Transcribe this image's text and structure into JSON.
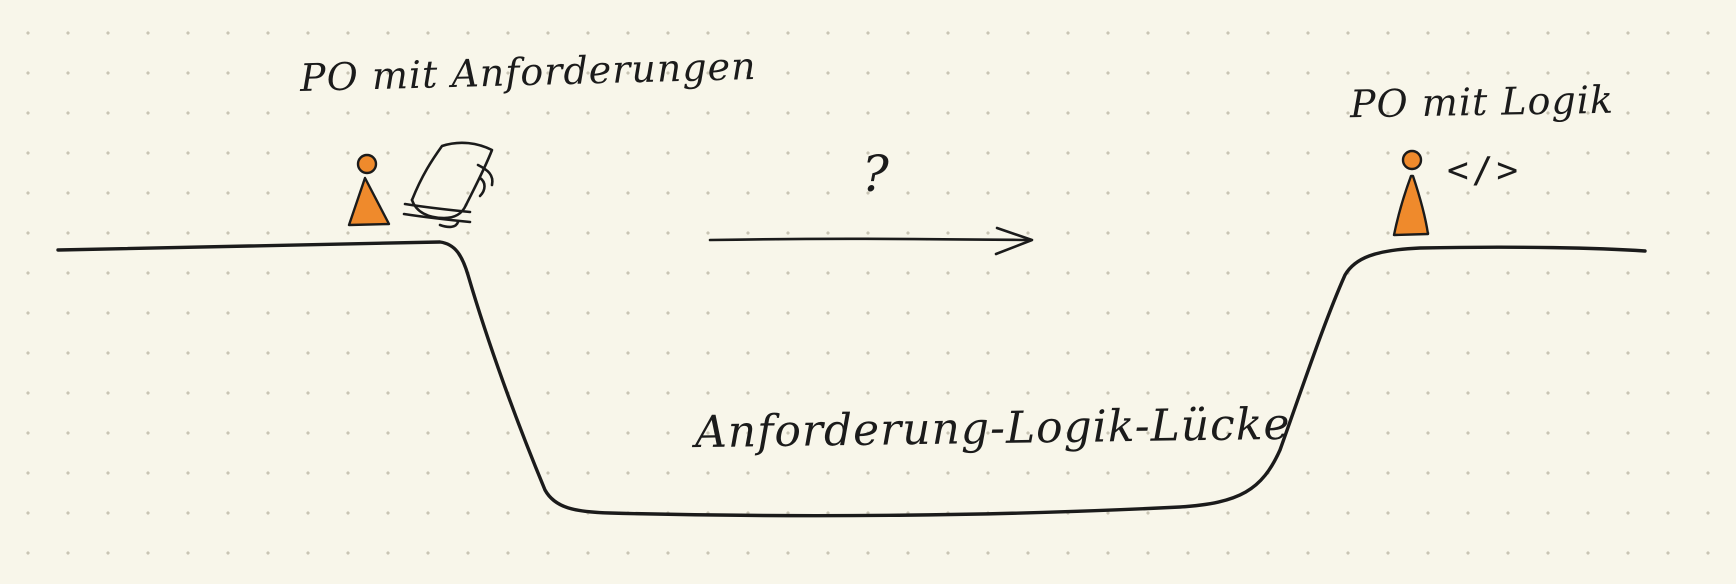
{
  "labels": {
    "left_person": "PO mit Anforderungen",
    "right_person": "PO mit Logik",
    "gap": "Anforderung-Logik-Lücke",
    "question": "?",
    "code_tag": "</>"
  },
  "colors": {
    "background": "#f8f6ea",
    "ink": "#1b1b1b",
    "figure": "#ef8a2c",
    "grid_dot": "#c9c5b4"
  },
  "icons": {
    "left_figure": "person-icon",
    "scroll": "scroll-icon",
    "right_figure": "person-icon",
    "arrow": "arrow-right-icon"
  }
}
